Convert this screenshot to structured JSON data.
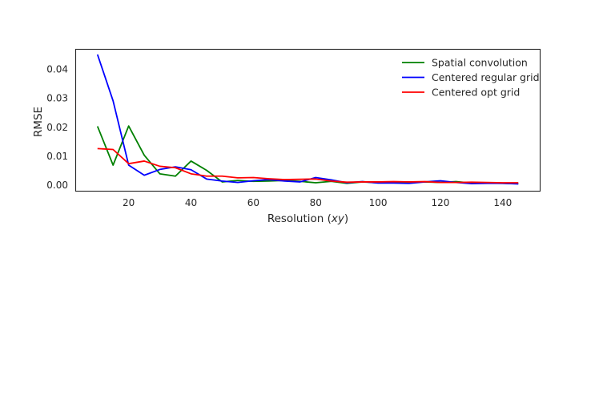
{
  "chart_data": {
    "type": "line",
    "xlabel_text": "Resolution (",
    "xlabel_math": "xy",
    "xlabel_close": ")",
    "ylabel": "RMSE",
    "xlim": [
      3,
      152
    ],
    "ylim": [
      -0.0022,
      0.0468
    ],
    "xticks": [
      20,
      40,
      60,
      80,
      100,
      120,
      140
    ],
    "yticks": [
      0.0,
      0.01,
      0.02,
      0.03,
      0.04
    ],
    "ytick_labels": [
      "0.00",
      "0.01",
      "0.02",
      "0.03",
      "0.04"
    ],
    "grid": false,
    "legend_position": "upper right",
    "x": [
      10,
      15,
      20,
      25,
      30,
      35,
      40,
      45,
      50,
      55,
      60,
      65,
      70,
      75,
      80,
      85,
      90,
      95,
      100,
      105,
      110,
      115,
      120,
      125,
      130,
      135,
      140,
      145
    ],
    "series": [
      {
        "name": "Spatial convolution",
        "color": "#008000",
        "values": [
          0.0202,
          0.0068,
          0.0203,
          0.0102,
          0.0038,
          0.003,
          0.0082,
          0.005,
          0.001,
          0.0015,
          0.0012,
          0.0013,
          0.0015,
          0.0012,
          0.0007,
          0.0012,
          0.0005,
          0.001,
          0.0007,
          0.0008,
          0.0009,
          0.001,
          0.0008,
          0.0011,
          0.0006,
          0.0006,
          0.0005,
          0.0004
        ]
      },
      {
        "name": "Centered regular grid",
        "color": "#0000ff",
        "values": [
          0.045,
          0.029,
          0.0068,
          0.0033,
          0.0053,
          0.0062,
          0.0052,
          0.002,
          0.0013,
          0.0008,
          0.0014,
          0.0018,
          0.0013,
          0.001,
          0.0025,
          0.0017,
          0.0007,
          0.0011,
          0.0006,
          0.0006,
          0.0005,
          0.001,
          0.0014,
          0.0008,
          0.0004,
          0.0005,
          0.0005,
          0.0003
        ]
      },
      {
        "name": "Centered opt grid",
        "color": "#ff0000",
        "values": [
          0.0125,
          0.0122,
          0.0073,
          0.0082,
          0.0064,
          0.0059,
          0.0038,
          0.003,
          0.003,
          0.0024,
          0.0025,
          0.0021,
          0.0018,
          0.0019,
          0.002,
          0.0013,
          0.0009,
          0.001,
          0.001,
          0.0011,
          0.001,
          0.0011,
          0.0008,
          0.0008,
          0.0009,
          0.0008,
          0.0007,
          0.0007
        ]
      }
    ]
  }
}
